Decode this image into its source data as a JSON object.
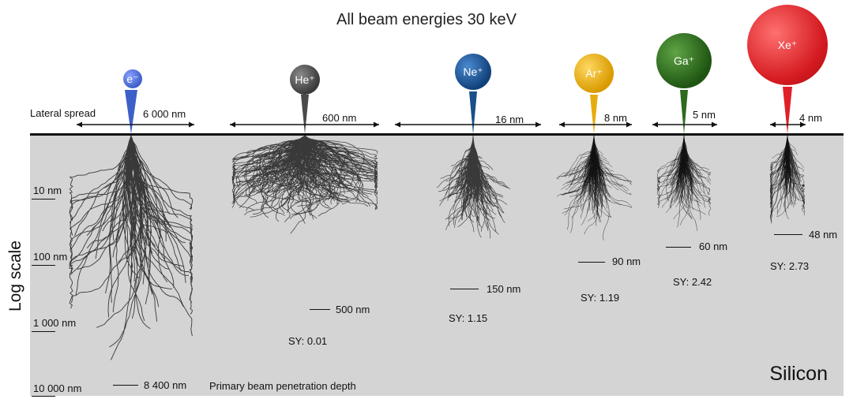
{
  "title": "All beam energies 30 keV",
  "material": "Silicon",
  "lateral_spread_label": "Lateral spread",
  "penetration_label": "Primary beam penetration depth",
  "y_axis_title": "Log scale",
  "scale_ticks": [
    "10 nm",
    "100 nm",
    "1 000 nm",
    "10 000 nm"
  ],
  "beams": [
    {
      "label": "e⁻",
      "color": "#3d5fc8",
      "lateral": "6 000 nm",
      "depth": "8 400 nm",
      "sy": ""
    },
    {
      "label": "He⁺",
      "color": "#4a4a4a",
      "lateral": "600 nm",
      "depth": "500 nm",
      "sy": "SY:  0.01"
    },
    {
      "label": "Ne⁺",
      "color": "#1a4f8a",
      "lateral": "16 nm",
      "depth": "150 nm",
      "sy": "SY:  1.15"
    },
    {
      "label": "Ar⁺",
      "color": "#e6ac0f",
      "lateral": "8 nm",
      "depth": "90 nm",
      "sy": "SY:  1.19"
    },
    {
      "label": "Ga⁺",
      "color": "#2d6b1f",
      "lateral": "5 nm",
      "depth": "60 nm",
      "sy": "SY:  2.42"
    },
    {
      "label": "Xe⁺",
      "color": "#e02028",
      "lateral": "4 nm",
      "depth": "48 nm",
      "sy": "SY:  2.73"
    }
  ]
}
